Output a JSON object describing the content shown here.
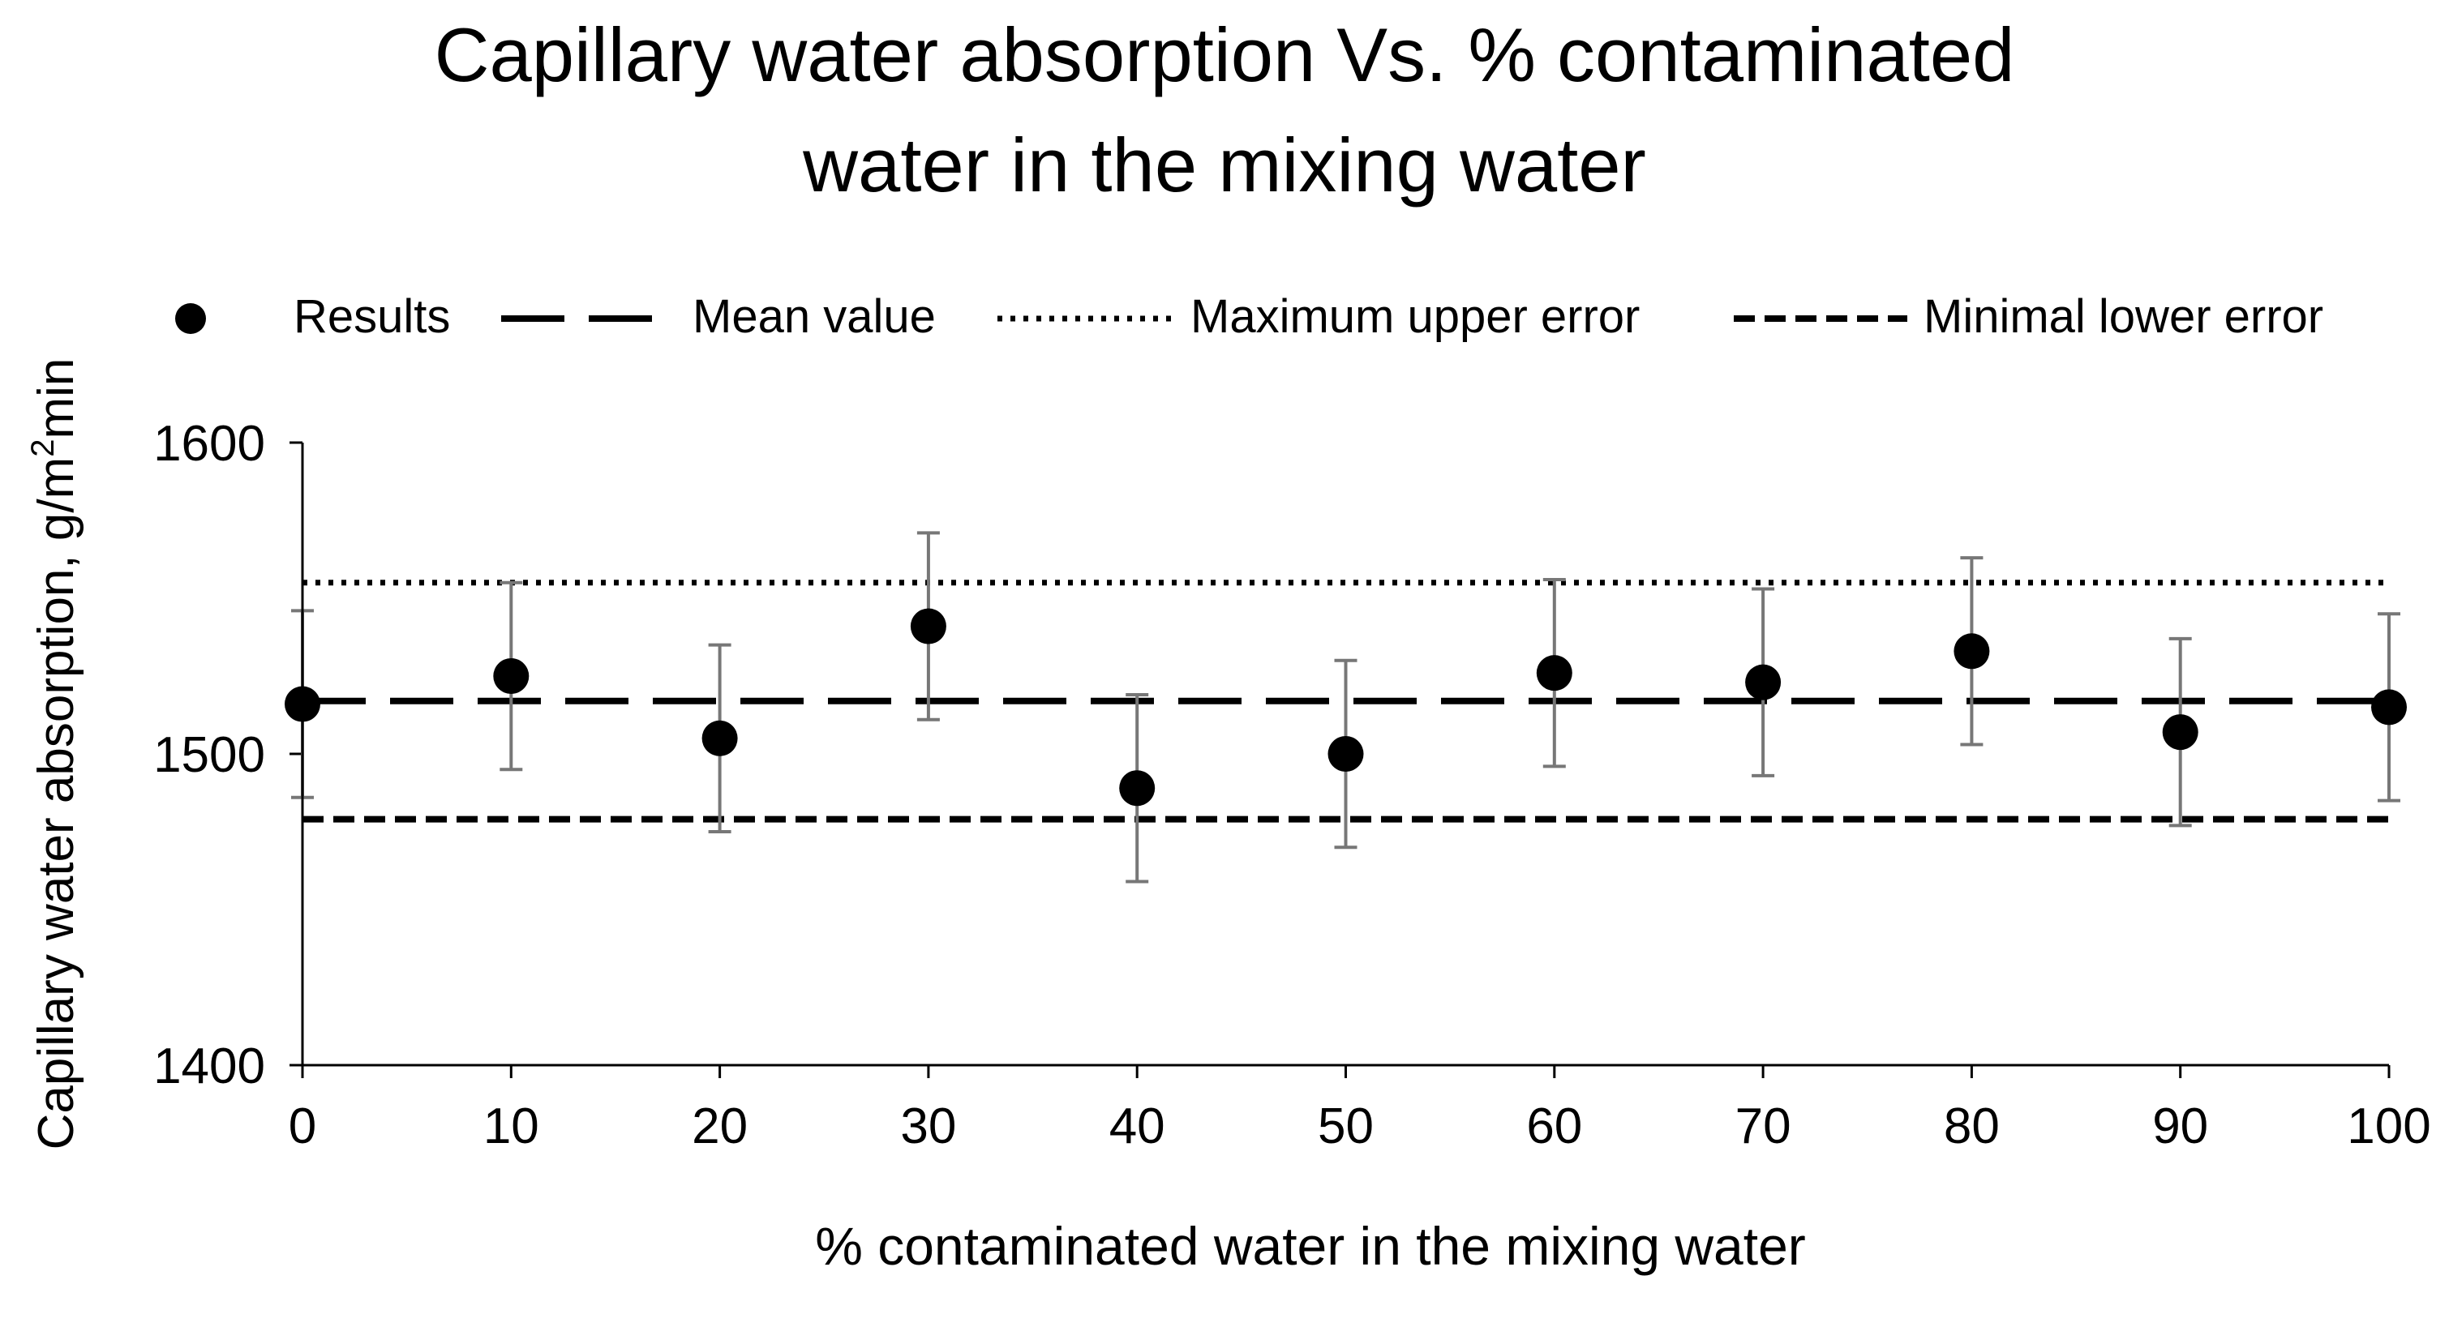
{
  "chart_data": {
    "type": "scatter",
    "title_lines": [
      "Capillary water absorption Vs. % contaminated",
      "water in the mixing water"
    ],
    "xlabel": "% contaminated water in the mixing water",
    "ylabel": {
      "prefix": "Capillary water absorption, g/m",
      "superscript": "2",
      "suffix": "min"
    },
    "xlim": [
      0,
      100
    ],
    "ylim": [
      1400,
      1600
    ],
    "x_ticks": [
      0,
      10,
      20,
      30,
      40,
      50,
      60,
      70,
      80,
      90,
      100
    ],
    "y_ticks": [
      1400,
      1500,
      1600
    ],
    "legend_position": "top",
    "legend": [
      {
        "key": "results",
        "label": "Results",
        "marker": "dot"
      },
      {
        "key": "mean",
        "label": "Mean value",
        "marker": "long-dash"
      },
      {
        "key": "upper",
        "label": "Maximum upper error",
        "marker": "dotted"
      },
      {
        "key": "lower",
        "label": "Minimal lower error",
        "marker": "short-dash"
      }
    ],
    "series": [
      {
        "name": "Results",
        "x": [
          0,
          10,
          20,
          30,
          40,
          50,
          60,
          70,
          80,
          90,
          100
        ],
        "y": [
          1516,
          1525,
          1505,
          1541,
          1489,
          1500,
          1526,
          1523,
          1533,
          1507,
          1515
        ],
        "error_low": [
          1486,
          1495,
          1475,
          1511,
          1459,
          1470,
          1496,
          1493,
          1503,
          1477,
          1485
        ],
        "error_high": [
          1546,
          1555,
          1535,
          1571,
          1519,
          1530,
          1556,
          1553,
          1563,
          1537,
          1545
        ]
      }
    ],
    "reference_lines": [
      {
        "name": "Mean value",
        "y": 1517,
        "style": "long-dash"
      },
      {
        "name": "Maximum upper error",
        "y": 1555,
        "style": "dotted"
      },
      {
        "name": "Minimal lower error",
        "y": 1479,
        "style": "short-dash"
      }
    ],
    "colors": {
      "marker": "#000000",
      "error_bar": "#777777",
      "axis": "#000000",
      "reference_line": "#000000"
    }
  }
}
